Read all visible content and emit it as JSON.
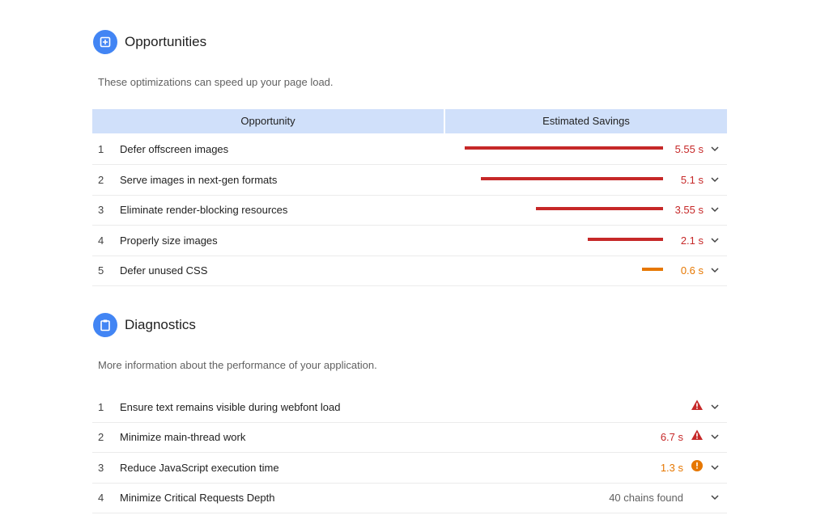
{
  "opportunities": {
    "title": "Opportunities",
    "description": "These optimizations can speed up your page load.",
    "column_opportunity": "Opportunity",
    "column_savings": "Estimated Savings",
    "max_savings_seconds": 5.55,
    "items": [
      {
        "num": "1",
        "title": "Defer offscreen images",
        "savings": "5.55 s",
        "seconds": 5.55,
        "severity": "fail"
      },
      {
        "num": "2",
        "title": "Serve images in next-gen formats",
        "savings": "5.1 s",
        "seconds": 5.1,
        "severity": "fail"
      },
      {
        "num": "3",
        "title": "Eliminate render-blocking resources",
        "savings": "3.55 s",
        "seconds": 3.55,
        "severity": "fail"
      },
      {
        "num": "4",
        "title": "Properly size images",
        "savings": "2.1 s",
        "seconds": 2.1,
        "severity": "fail"
      },
      {
        "num": "5",
        "title": "Defer unused CSS",
        "savings": "0.6 s",
        "seconds": 0.6,
        "severity": "average"
      }
    ]
  },
  "diagnostics": {
    "title": "Diagnostics",
    "description": "More information about the performance of your application.",
    "items": [
      {
        "num": "1",
        "title": "Ensure text remains visible during webfont load",
        "value": "",
        "status_icon": "warning-triangle-icon"
      },
      {
        "num": "2",
        "title": "Minimize main-thread work",
        "value": "6.7 s",
        "status_icon": "warning-triangle-icon"
      },
      {
        "num": "3",
        "title": "Reduce JavaScript execution time",
        "value": "1.3 s",
        "status_icon": "info-circle-icon"
      },
      {
        "num": "4",
        "title": "Minimize Critical Requests Depth",
        "value": "40 chains found",
        "status_icon": ""
      }
    ]
  },
  "colors": {
    "fail": "#c62828",
    "average": "#e67700",
    "header_bg": "#d0e0fa",
    "icon_blue": "#4285f4",
    "neutral": "#616161"
  }
}
